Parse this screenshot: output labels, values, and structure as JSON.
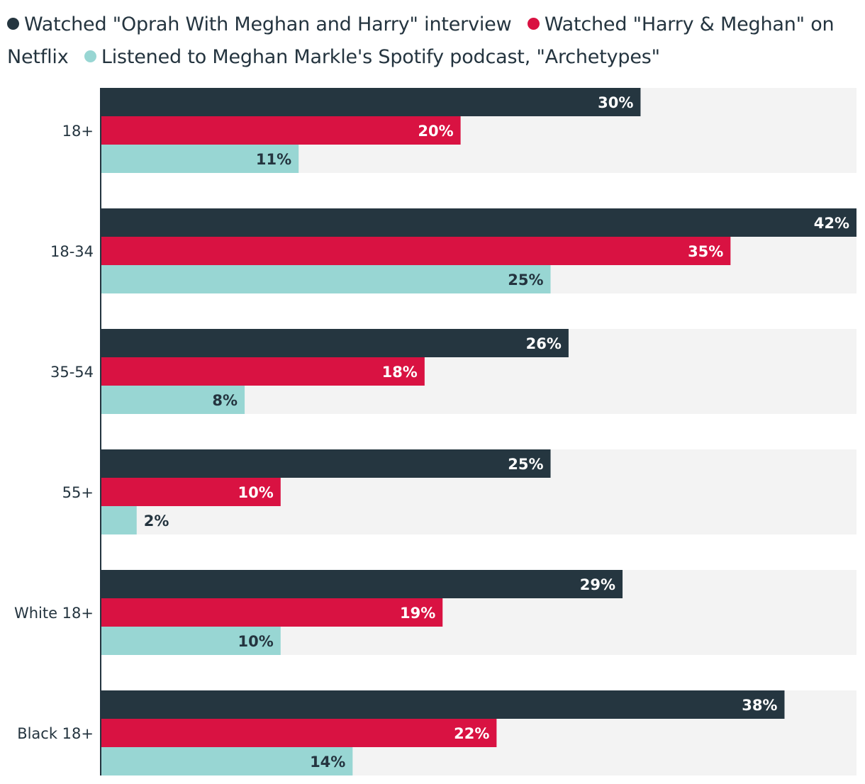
{
  "legend": {
    "items": [
      {
        "label": "Watched \"Oprah With Meghan and Harry\" interview",
        "color": "#253640"
      },
      {
        "label": "Watched \"Harry & Meghan\" on Netflix",
        "color": "#d91242"
      },
      {
        "label": "Listened to Meghan Markle's Spotify podcast, \"Archetypes\"",
        "color": "#98d6d3"
      }
    ]
  },
  "chart_data": {
    "type": "bar",
    "orientation": "horizontal",
    "categories": [
      "18+",
      "18-34",
      "35-54",
      "55+",
      "White 18+",
      "Black 18+"
    ],
    "series": [
      {
        "name": "Watched \"Oprah With Meghan and Harry\" interview",
        "color": "#253640",
        "label_color": "#ffffff",
        "values": [
          30,
          42,
          26,
          25,
          29,
          38
        ]
      },
      {
        "name": "Watched \"Harry & Meghan\" on Netflix",
        "color": "#d91242",
        "label_color": "#ffffff",
        "values": [
          20,
          35,
          18,
          10,
          19,
          22
        ]
      },
      {
        "name": "Listened to Meghan Markle's Spotify podcast, \"Archetypes\"",
        "color": "#98d6d3",
        "label_color": "#24343f",
        "values": [
          11,
          25,
          8,
          2,
          10,
          14
        ]
      }
    ],
    "value_suffix": "%",
    "xlim": [
      0,
      42
    ],
    "background_track_color": "#f3f3f3",
    "title": "",
    "xlabel": "",
    "ylabel": ""
  }
}
